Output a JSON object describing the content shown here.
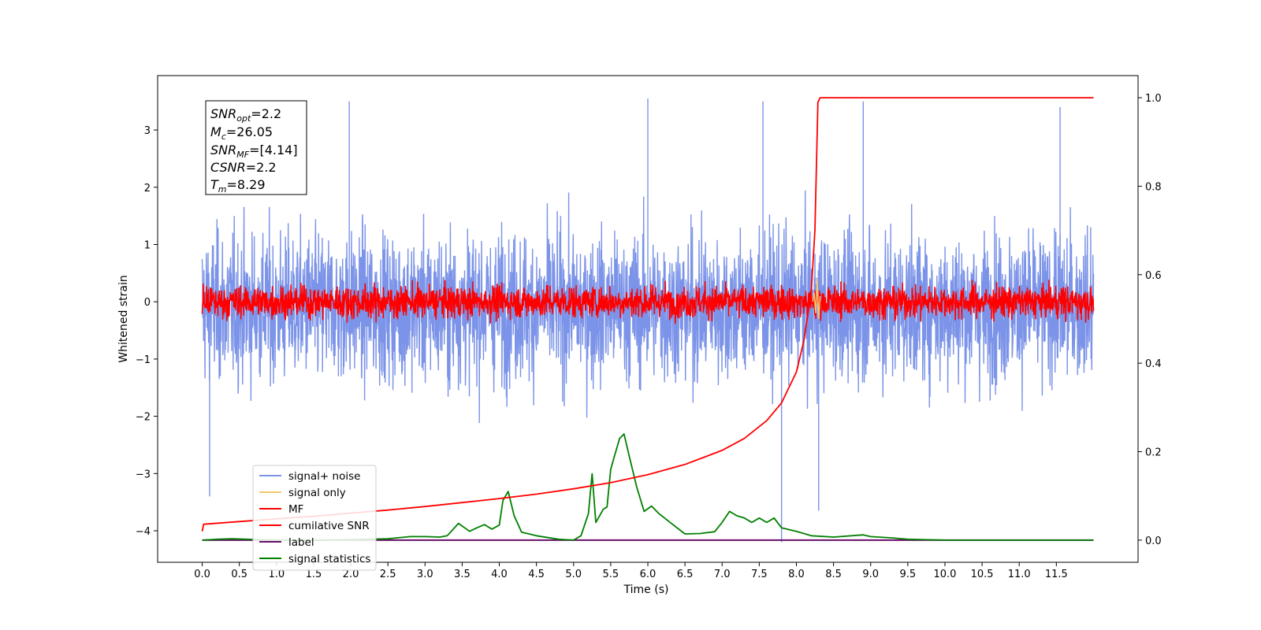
{
  "chart_data": {
    "type": "line",
    "xlabel": "Time (s)",
    "ylabel": "Whitened strain",
    "xlim": [
      -0.6,
      12.6
    ],
    "ylim": [
      -4.55,
      3.95
    ],
    "ylim_right": [
      -0.05,
      1.05
    ],
    "x_ticks": [
      "0.0",
      "0.5",
      "1.0",
      "1.5",
      "2.0",
      "2.5",
      "3.0",
      "3.5",
      "4.0",
      "4.5",
      "5.0",
      "5.5",
      "6.0",
      "6.5",
      "7.0",
      "7.5",
      "8.0",
      "8.5",
      "9.0",
      "9.5",
      "10.0",
      "10.5",
      "11.0",
      "11.5"
    ],
    "y_ticks": [
      "−4",
      "−3",
      "−2",
      "−1",
      "0",
      "1",
      "2",
      "3"
    ],
    "y_ticks_right": [
      "0.0",
      "0.2",
      "0.4",
      "0.6",
      "0.8",
      "1.0"
    ],
    "grid": false,
    "legend_position": "lower-left",
    "legend": [
      "signal+ noise",
      "signal only",
      "MF",
      "cumilative SNR",
      "label",
      "signal statistics"
    ],
    "colors": {
      "signal_noise": "#7b93e8",
      "signal_only": "#f5c76a",
      "mf": "#ff0000",
      "cumulative_snr": "#ff0000",
      "label": "#6a0d6a",
      "signal_statistics": "#008000"
    },
    "info_box": {
      "snr_opt_main": "SNR",
      "snr_opt_sub": "opt",
      "snr_opt_val": "=2.2",
      "mc_main": "M",
      "mc_sub": "c",
      "mc_val": "=26.05",
      "snr_mf_main": "SNR",
      "snr_mf_sub": "MF",
      "snr_mf_val": "=[4.14]",
      "csnr_main": "CSNR",
      "csnr_val": "=2.2",
      "tm_main": "T",
      "tm_sub": "m",
      "tm_val": "=8.29"
    },
    "series": [
      {
        "name": "signal+ noise",
        "axis": "left",
        "description_range": [
          0.0,
          12.0
        ],
        "amplitude_envelope": [
          -3.5,
          3.6
        ],
        "spikes": [
          [
            1.98,
            3.5
          ],
          [
            6.0,
            3.55
          ],
          [
            7.8,
            -4.2
          ],
          [
            7.55,
            3.5
          ],
          [
            8.9,
            3.5
          ],
          [
            11.55,
            3.4
          ],
          [
            0.1,
            -3.4
          ],
          [
            8.3,
            -3.65
          ]
        ]
      },
      {
        "name": "MF",
        "axis": "left",
        "description_range": [
          0.0,
          12.0
        ],
        "amplitude_envelope": [
          -0.45,
          0.85
        ]
      },
      {
        "name": "signal only",
        "axis": "left",
        "x": [
          8.22,
          8.24,
          8.26,
          8.28,
          8.3,
          8.32
        ],
        "y": [
          0.0,
          0.15,
          -0.2,
          0.4,
          -0.3,
          0.1
        ]
      },
      {
        "name": "cumilative SNR",
        "axis": "right",
        "x": [
          0.0,
          0.02,
          0.5,
          1.0,
          1.5,
          2.0,
          2.5,
          3.0,
          3.5,
          4.0,
          4.5,
          5.0,
          5.5,
          6.0,
          6.5,
          7.0,
          7.3,
          7.6,
          7.8,
          8.0,
          8.1,
          8.2,
          8.25,
          8.29,
          8.32,
          9.0,
          10.0,
          11.0,
          12.0
        ],
        "y": [
          0.02,
          0.036,
          0.042,
          0.048,
          0.054,
          0.061,
          0.068,
          0.076,
          0.085,
          0.094,
          0.104,
          0.116,
          0.13,
          0.148,
          0.171,
          0.203,
          0.23,
          0.27,
          0.31,
          0.38,
          0.45,
          0.56,
          0.7,
          0.99,
          1.0,
          1.0,
          1.0,
          1.0,
          1.0
        ]
      },
      {
        "name": "label",
        "axis": "right",
        "x": [
          0.0,
          12.0
        ],
        "y": [
          0.0,
          0.0
        ]
      },
      {
        "name": "signal statistics",
        "axis": "right",
        "x": [
          0.0,
          0.2,
          0.4,
          0.6,
          0.8,
          1.0,
          1.5,
          2.0,
          2.5,
          2.8,
          3.0,
          3.2,
          3.3,
          3.45,
          3.6,
          3.7,
          3.8,
          3.9,
          4.0,
          4.05,
          4.12,
          4.2,
          4.3,
          4.5,
          4.8,
          5.0,
          5.1,
          5.2,
          5.25,
          5.3,
          5.4,
          5.45,
          5.5,
          5.55,
          5.62,
          5.68,
          5.75,
          5.85,
          5.95,
          6.05,
          6.15,
          6.3,
          6.5,
          6.7,
          6.9,
          7.0,
          7.1,
          7.2,
          7.3,
          7.4,
          7.5,
          7.6,
          7.7,
          7.8,
          8.0,
          8.2,
          8.5,
          8.9,
          9.0,
          9.3,
          9.5,
          10.0,
          11.0,
          12.0
        ],
        "y": [
          0.0,
          0.002,
          0.003,
          0.002,
          0.001,
          0.0,
          0.0,
          0.001,
          0.003,
          0.008,
          0.008,
          0.007,
          0.01,
          0.038,
          0.02,
          0.028,
          0.035,
          0.025,
          0.034,
          0.09,
          0.11,
          0.055,
          0.018,
          0.01,
          0.002,
          0.0,
          0.01,
          0.06,
          0.15,
          0.04,
          0.07,
          0.075,
          0.16,
          0.19,
          0.23,
          0.24,
          0.19,
          0.12,
          0.065,
          0.077,
          0.06,
          0.04,
          0.014,
          0.015,
          0.019,
          0.04,
          0.065,
          0.055,
          0.05,
          0.04,
          0.05,
          0.04,
          0.05,
          0.028,
          0.02,
          0.01,
          0.007,
          0.012,
          0.008,
          0.005,
          0.002,
          0.0,
          0.0,
          0.0
        ]
      }
    ]
  }
}
